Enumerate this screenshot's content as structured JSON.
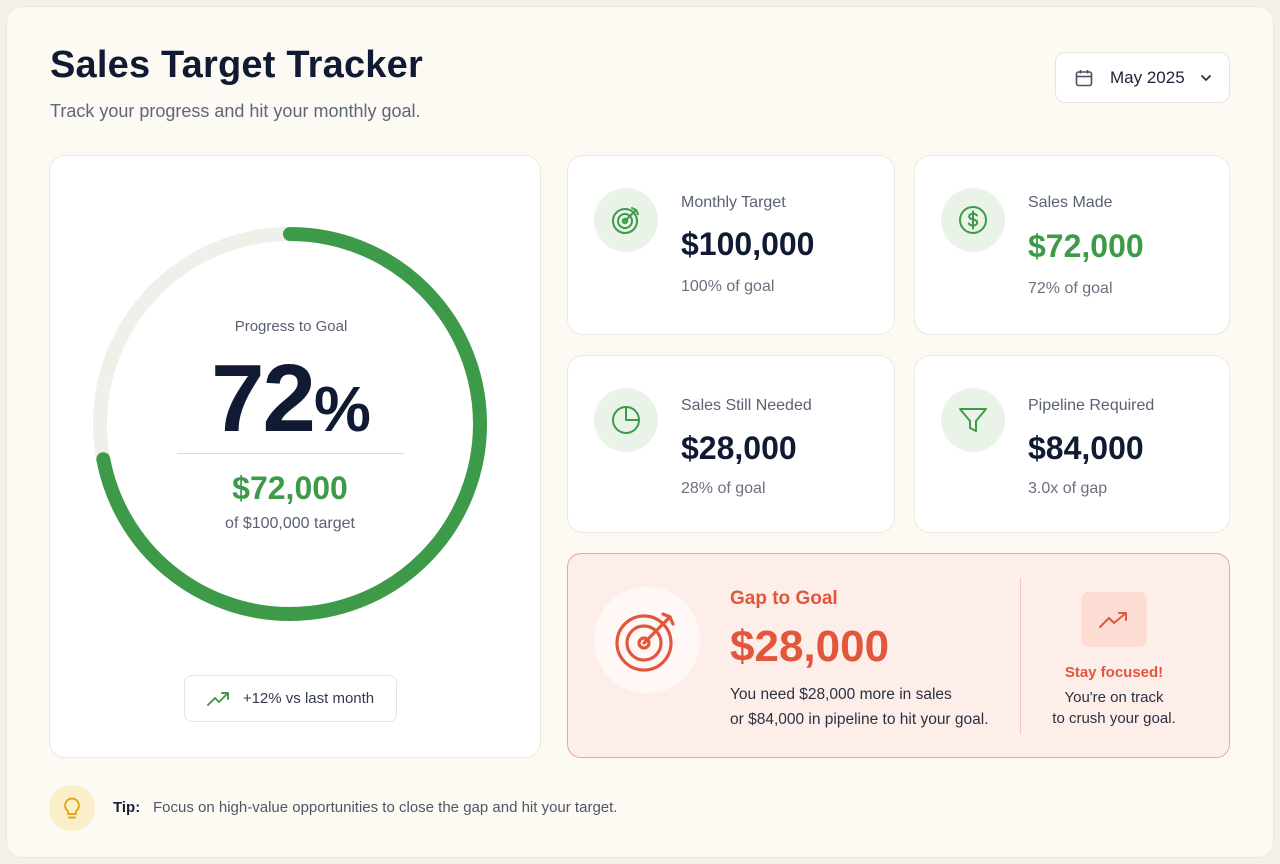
{
  "header": {
    "title": "Sales Target Tracker",
    "subtitle": "Track your progress and hit your monthly goal."
  },
  "month_selector": {
    "value": "May 2025",
    "icon": "calendar-icon",
    "chevron": "chevron-down-icon"
  },
  "progress": {
    "label": "Progress to Goal",
    "percent_value": "72",
    "percent_sign": "%",
    "fraction": 0.72,
    "amount": "$72,000",
    "target_text": "of $100,000 target",
    "trend": "+12% vs last month",
    "trend_icon": "trending-up-icon"
  },
  "stats": {
    "monthly_target": {
      "label": "Monthly Target",
      "value": "$100,000",
      "note": "100% of goal",
      "icon": "target-icon"
    },
    "sales_made": {
      "label": "Sales Made",
      "value": "$72,000",
      "note": "72% of goal",
      "icon": "dollar-circle-icon"
    },
    "sales_needed": {
      "label": "Sales Still Needed",
      "value": "$28,000",
      "note": "28% of goal",
      "icon": "pie-chart-icon"
    },
    "pipeline": {
      "label": "Pipeline Required",
      "value": "$84,000",
      "note": "3.0x of gap",
      "icon": "funnel-icon"
    }
  },
  "gap": {
    "title": "Gap to Goal",
    "value": "$28,000",
    "line1": "You need $28,000 more in sales",
    "line2": "or $84,000 in pipeline to hit your goal.",
    "focus_title": "Stay focused!",
    "focus_line1": "You're on track",
    "focus_line2": "to crush your goal.",
    "icon": "target-arrow-icon"
  },
  "tip": {
    "label": "Tip:",
    "text": "Focus on high-value opportunities to close the gap and hit your target.",
    "icon": "lightbulb-icon"
  },
  "colors": {
    "green": "#3d9a48",
    "red": "#e2573c",
    "ring_track": "#edf1ea"
  }
}
